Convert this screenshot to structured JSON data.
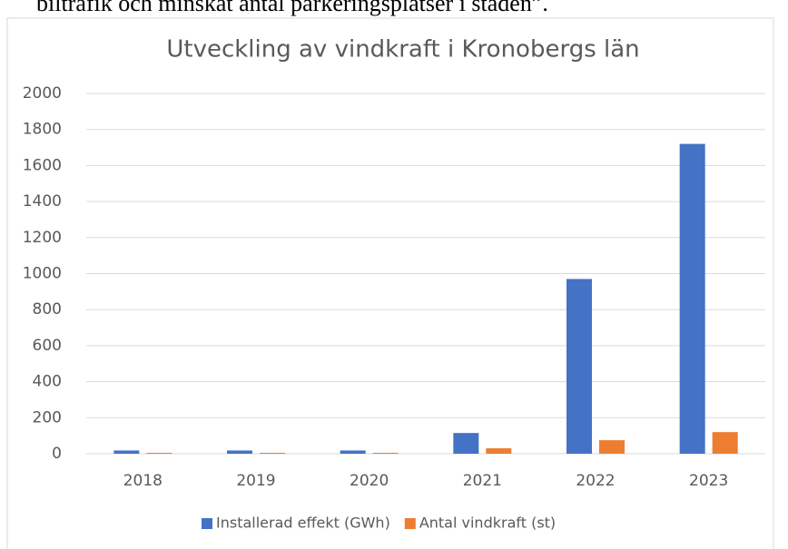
{
  "page_text": "biltrafik och minskat antal parkeringsplatser i staden”.",
  "chart_data": {
    "type": "bar",
    "title": "Utveckling av vindkraft i Kronobergs län",
    "categories": [
      "2018",
      "2019",
      "2020",
      "2021",
      "2022",
      "2023"
    ],
    "series": [
      {
        "name": "Installerad effekt (GWh)",
        "color": "#4472c4",
        "values": [
          18,
          18,
          18,
          115,
          970,
          1720
        ]
      },
      {
        "name": "Antal vindkraft (st)",
        "color": "#ed7d31",
        "values": [
          5,
          5,
          5,
          30,
          75,
          120
        ]
      }
    ],
    "ylim": [
      0,
      2000
    ],
    "yticks": [
      0,
      200,
      400,
      600,
      800,
      1000,
      1200,
      1400,
      1600,
      1800,
      2000
    ],
    "grid": true,
    "legend": "bottom"
  }
}
